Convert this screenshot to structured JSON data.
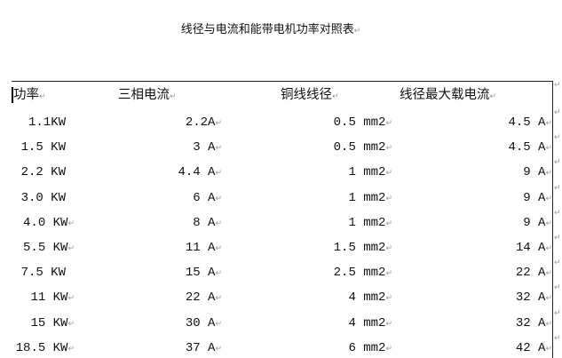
{
  "title": "线径与电流和能带电机功率对照表",
  "mark": "↵",
  "header": [
    {
      "text": "功率",
      "mark": true
    },
    {
      "text": "三相电流",
      "mark": true
    },
    {
      "text": "铜线线径",
      "mark": true
    },
    {
      "text": "线径最大载电流",
      "mark": true
    }
  ],
  "rows": [
    [
      {
        "text": "1.1KW",
        "mark": false
      },
      {
        "text": "2.2A",
        "mark": true
      },
      {
        "text": "0.5 mm2",
        "mark": true
      },
      {
        "text": "4.5 A",
        "mark": true
      }
    ],
    [
      {
        "text": "1.5 KW",
        "mark": false
      },
      {
        "text": "3 A",
        "mark": true
      },
      {
        "text": "0.5 mm2",
        "mark": true
      },
      {
        "text": "4.5 A",
        "mark": true
      }
    ],
    [
      {
        "text": "2.2 KW",
        "mark": false
      },
      {
        "text": "4.4 A",
        "mark": true
      },
      {
        "text": "1 mm2",
        "mark": true
      },
      {
        "text": "9 A",
        "mark": true
      }
    ],
    [
      {
        "text": "3.0 KW",
        "mark": false
      },
      {
        "text": "6 A",
        "mark": true
      },
      {
        "text": "1 mm2",
        "mark": true
      },
      {
        "text": "9 A",
        "mark": true
      }
    ],
    [
      {
        "text": "4.0 KW",
        "mark": true
      },
      {
        "text": "8 A",
        "mark": true
      },
      {
        "text": "1 mm2",
        "mark": true
      },
      {
        "text": "9 A",
        "mark": true
      }
    ],
    [
      {
        "text": "5.5 KW",
        "mark": true
      },
      {
        "text": "11 A",
        "mark": true
      },
      {
        "text": "1.5 mm2",
        "mark": true
      },
      {
        "text": "14 A",
        "mark": true
      }
    ],
    [
      {
        "text": "7.5 KW",
        "mark": false
      },
      {
        "text": "15 A",
        "mark": true
      },
      {
        "text": "2.5 mm2",
        "mark": true
      },
      {
        "text": "22 A",
        "mark": true
      }
    ],
    [
      {
        "text": "11 KW",
        "mark": true
      },
      {
        "text": "22 A",
        "mark": true
      },
      {
        "text": "4 mm2",
        "mark": true
      },
      {
        "text": "32 A",
        "mark": true
      }
    ],
    [
      {
        "text": "15 KW",
        "mark": true
      },
      {
        "text": "30 A",
        "mark": true
      },
      {
        "text": "4 mm2",
        "mark": true
      },
      {
        "text": "32 A",
        "mark": true
      }
    ],
    [
      {
        "text": "18.5 KW",
        "mark": true
      },
      {
        "text": "37 A",
        "mark": true
      },
      {
        "text": "6 mm2",
        "mark": true
      },
      {
        "text": "42 A",
        "mark": true
      }
    ]
  ]
}
